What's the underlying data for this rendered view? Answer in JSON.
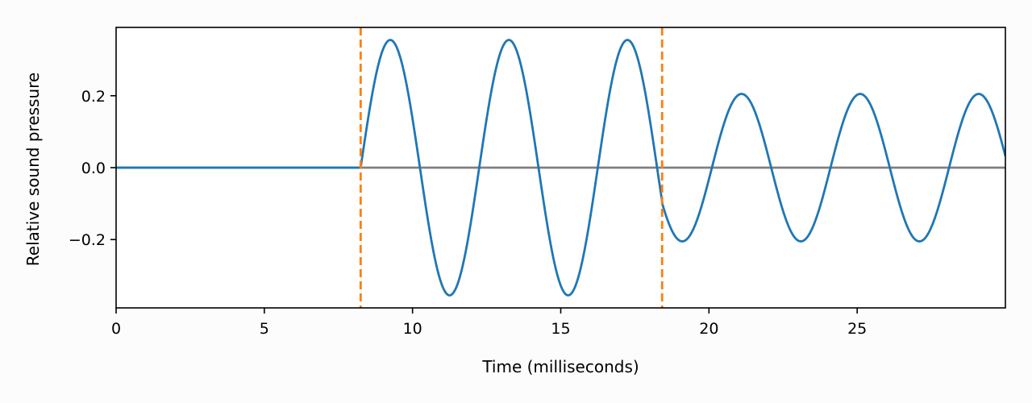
{
  "chart_data": {
    "type": "line",
    "title": "",
    "xlabel": "Time (milliseconds)",
    "ylabel": "Relative sound pressure",
    "xlim": [
      0,
      30
    ],
    "ylim": [
      -0.39,
      0.39
    ],
    "xticks": [
      0,
      5,
      10,
      15,
      20,
      25
    ],
    "xtick_labels": [
      "0",
      "5",
      "10",
      "15",
      "20",
      "25"
    ],
    "yticks": [
      -0.2,
      0.0,
      0.2
    ],
    "ytick_labels": [
      "−0.2",
      "0.0",
      "0.2"
    ],
    "grid": false,
    "legend": "none",
    "series": [
      {
        "role": "waveform",
        "color": "#1f77b4",
        "pieces": [
          {
            "from": 0.0,
            "to": 8.25,
            "form": "constant",
            "value": 0.0
          },
          {
            "from": 8.25,
            "to": 18.42,
            "form": "sine",
            "amplitude": 0.355,
            "period": 4.0,
            "phase_zero": 8.25
          },
          {
            "from": 18.42,
            "to": 30.0,
            "form": "sine",
            "amplitude": 0.205,
            "period": 4.0,
            "phase_zero": 20.1
          }
        ]
      },
      {
        "role": "baseline",
        "color": "#7f7f7f",
        "form": "constant",
        "value": 0.0,
        "from": 0.0,
        "to": 30.0
      },
      {
        "role": "marker",
        "color": "#ff7f0e",
        "style": "dashed",
        "orientation": "vertical",
        "x": 8.25
      },
      {
        "role": "marker",
        "color": "#ff7f0e",
        "style": "dashed",
        "orientation": "vertical",
        "x": 18.42
      }
    ]
  }
}
